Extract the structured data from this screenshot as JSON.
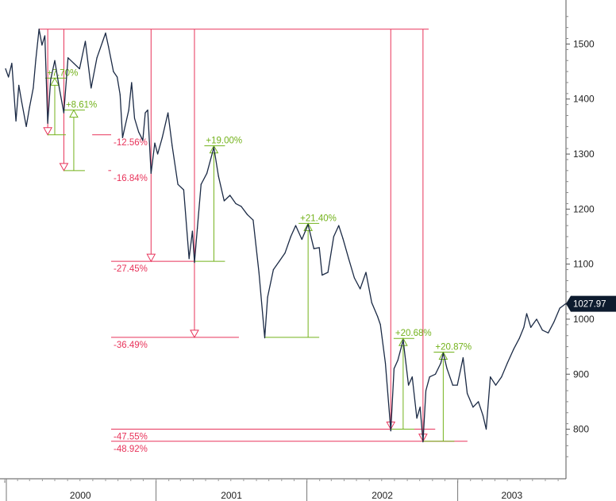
{
  "chart_data": {
    "type": "line",
    "y_axis": {
      "position": "right",
      "ticks": [
        800,
        900,
        1000,
        1100,
        1200,
        1300,
        1400,
        1500
      ],
      "range": [
        720,
        1580
      ]
    },
    "x_axis": {
      "range": [
        "2000-01-01",
        "2003-09-20"
      ],
      "year_labels": [
        "2000",
        "2001",
        "2002",
        "2003"
      ]
    },
    "grid": false,
    "last_value": {
      "label": "1027.97",
      "value": 1027.97,
      "color": "#0d1b2e"
    },
    "colors": {
      "line": "#1b2a45",
      "drawdown": "#e8335a",
      "rally": "#73b21b"
    },
    "peak": {
      "date": "2000-03-24",
      "value": 1527
    },
    "series": [
      {
        "points": [
          [
            "2000-01-03",
            1455
          ],
          [
            "2000-01-10",
            1440
          ],
          [
            "2000-01-18",
            1465
          ],
          [
            "2000-01-28",
            1360
          ],
          [
            "2000-02-04",
            1425
          ],
          [
            "2000-02-11",
            1395
          ],
          [
            "2000-02-22",
            1350
          ],
          [
            "2000-03-01",
            1385
          ],
          [
            "2000-03-10",
            1420
          ],
          [
            "2000-03-16",
            1470
          ],
          [
            "2000-03-24",
            1527
          ],
          [
            "2000-03-31",
            1498
          ],
          [
            "2000-04-07",
            1515
          ],
          [
            "2000-04-14",
            1356
          ],
          [
            "2000-04-21",
            1435
          ],
          [
            "2000-05-01",
            1470
          ],
          [
            "2000-05-12",
            1420
          ],
          [
            "2000-05-23",
            1375
          ],
          [
            "2000-06-02",
            1475
          ],
          [
            "2000-06-16",
            1465
          ],
          [
            "2000-06-30",
            1455
          ],
          [
            "2000-07-14",
            1505
          ],
          [
            "2000-07-28",
            1420
          ],
          [
            "2000-08-11",
            1475
          ],
          [
            "2000-08-25",
            1505
          ],
          [
            "2000-09-01",
            1520
          ],
          [
            "2000-09-08",
            1495
          ],
          [
            "2000-09-20",
            1450
          ],
          [
            "2000-09-29",
            1440
          ],
          [
            "2000-10-06",
            1408
          ],
          [
            "2000-10-12",
            1330
          ],
          [
            "2000-10-18",
            1350
          ],
          [
            "2000-10-27",
            1380
          ],
          [
            "2000-11-03",
            1430
          ],
          [
            "2000-11-10",
            1365
          ],
          [
            "2000-11-20",
            1340
          ],
          [
            "2000-11-30",
            1325
          ],
          [
            "2000-12-06",
            1375
          ],
          [
            "2000-12-12",
            1380
          ],
          [
            "2000-12-20",
            1265
          ],
          [
            "2000-12-29",
            1320
          ],
          [
            "2001-01-05",
            1300
          ],
          [
            "2001-01-16",
            1330
          ],
          [
            "2001-01-30",
            1375
          ],
          [
            "2001-02-09",
            1315
          ],
          [
            "2001-02-23",
            1245
          ],
          [
            "2001-03-09",
            1235
          ],
          [
            "2001-03-22",
            1110
          ],
          [
            "2001-03-30",
            1160
          ],
          [
            "2001-04-04",
            1103
          ],
          [
            "2001-04-11",
            1165
          ],
          [
            "2001-04-20",
            1245
          ],
          [
            "2001-05-04",
            1265
          ],
          [
            "2001-05-21",
            1312
          ],
          [
            "2001-06-01",
            1260
          ],
          [
            "2001-06-15",
            1215
          ],
          [
            "2001-06-29",
            1225
          ],
          [
            "2001-07-13",
            1210
          ],
          [
            "2001-07-26",
            1205
          ],
          [
            "2001-08-10",
            1190
          ],
          [
            "2001-08-24",
            1180
          ],
          [
            "2001-09-07",
            1085
          ],
          [
            "2001-09-21",
            966
          ],
          [
            "2001-09-28",
            1040
          ],
          [
            "2001-10-12",
            1090
          ],
          [
            "2001-10-26",
            1105
          ],
          [
            "2001-11-09",
            1120
          ],
          [
            "2001-11-23",
            1150
          ],
          [
            "2001-12-05",
            1170
          ],
          [
            "2001-12-20",
            1145
          ],
          [
            "2002-01-04",
            1172
          ],
          [
            "2002-01-18",
            1128
          ],
          [
            "2002-01-31",
            1130
          ],
          [
            "2002-02-07",
            1080
          ],
          [
            "2002-02-21",
            1085
          ],
          [
            "2002-03-07",
            1150
          ],
          [
            "2002-03-19",
            1170
          ],
          [
            "2002-03-29",
            1147
          ],
          [
            "2002-04-12",
            1110
          ],
          [
            "2002-04-26",
            1075
          ],
          [
            "2002-05-10",
            1055
          ],
          [
            "2002-05-24",
            1085
          ],
          [
            "2002-06-07",
            1030
          ],
          [
            "2002-06-21",
            1005
          ],
          [
            "2002-06-28",
            990
          ],
          [
            "2002-07-10",
            920
          ],
          [
            "2002-07-23",
            797
          ],
          [
            "2002-07-31",
            910
          ],
          [
            "2002-08-09",
            925
          ],
          [
            "2002-08-22",
            962
          ],
          [
            "2002-09-04",
            880
          ],
          [
            "2002-09-13",
            895
          ],
          [
            "2002-09-24",
            820
          ],
          [
            "2002-10-02",
            840
          ],
          [
            "2002-10-09",
            777
          ],
          [
            "2002-10-16",
            870
          ],
          [
            "2002-10-25",
            895
          ],
          [
            "2002-11-08",
            900
          ],
          [
            "2002-11-21",
            920
          ],
          [
            "2002-11-27",
            938
          ],
          [
            "2002-12-06",
            910
          ],
          [
            "2002-12-20",
            880
          ],
          [
            "2002-12-31",
            880
          ],
          [
            "2003-01-14",
            930
          ],
          [
            "2003-01-24",
            865
          ],
          [
            "2003-02-07",
            840
          ],
          [
            "2003-02-20",
            850
          ],
          [
            "2003-03-03",
            825
          ],
          [
            "2003-03-11",
            800
          ],
          [
            "2003-03-21",
            895
          ],
          [
            "2003-04-03",
            880
          ],
          [
            "2003-04-17",
            895
          ],
          [
            "2003-05-01",
            920
          ],
          [
            "2003-05-16",
            945
          ],
          [
            "2003-05-30",
            965
          ],
          [
            "2003-06-10",
            985
          ],
          [
            "2003-06-17",
            1010
          ],
          [
            "2003-06-27",
            985
          ],
          [
            "2003-07-11",
            1000
          ],
          [
            "2003-07-25",
            980
          ],
          [
            "2003-08-08",
            975
          ],
          [
            "2003-08-22",
            995
          ],
          [
            "2003-09-05",
            1020
          ],
          [
            "2003-09-19",
            1027.97
          ]
        ]
      }
    ],
    "drawdowns": [
      {
        "label": "-12.56%",
        "date": "2000-04-14",
        "value": 1335
      },
      {
        "label": "-16.84%",
        "date": "2000-05-23",
        "value": 1270
      },
      {
        "label": "-27.45%",
        "date": "2000-12-20",
        "value": 1105
      },
      {
        "label": "-36.49%",
        "date": "2001-04-04",
        "value": 967
      },
      {
        "label": "-47.55%",
        "date": "2002-07-23",
        "value": 800
      },
      {
        "label": "-48.92%",
        "date": "2002-10-09",
        "value": 778
      }
    ],
    "rallies": [
      {
        "label": "+7.70%",
        "from_date": "2000-04-14",
        "to_date": "2000-05-01",
        "from": 1335,
        "to": 1438
      },
      {
        "label": "+8.61%",
        "from_date": "2000-05-23",
        "to_date": "2000-06-16",
        "from": 1270,
        "to": 1380
      },
      {
        "label": "+19.00%",
        "from_date": "2001-04-04",
        "to_date": "2001-05-21",
        "from": 1105,
        "to": 1315
      },
      {
        "label": "+21.40%",
        "from_date": "2001-09-21",
        "to_date": "2002-01-04",
        "from": 967,
        "to": 1174
      },
      {
        "label": "+20.68%",
        "from_date": "2002-07-23",
        "to_date": "2002-08-22",
        "from": 800,
        "to": 965
      },
      {
        "label": "+20.87%",
        "from_date": "2002-10-09",
        "to_date": "2002-11-27",
        "from": 778,
        "to": 940
      }
    ]
  }
}
